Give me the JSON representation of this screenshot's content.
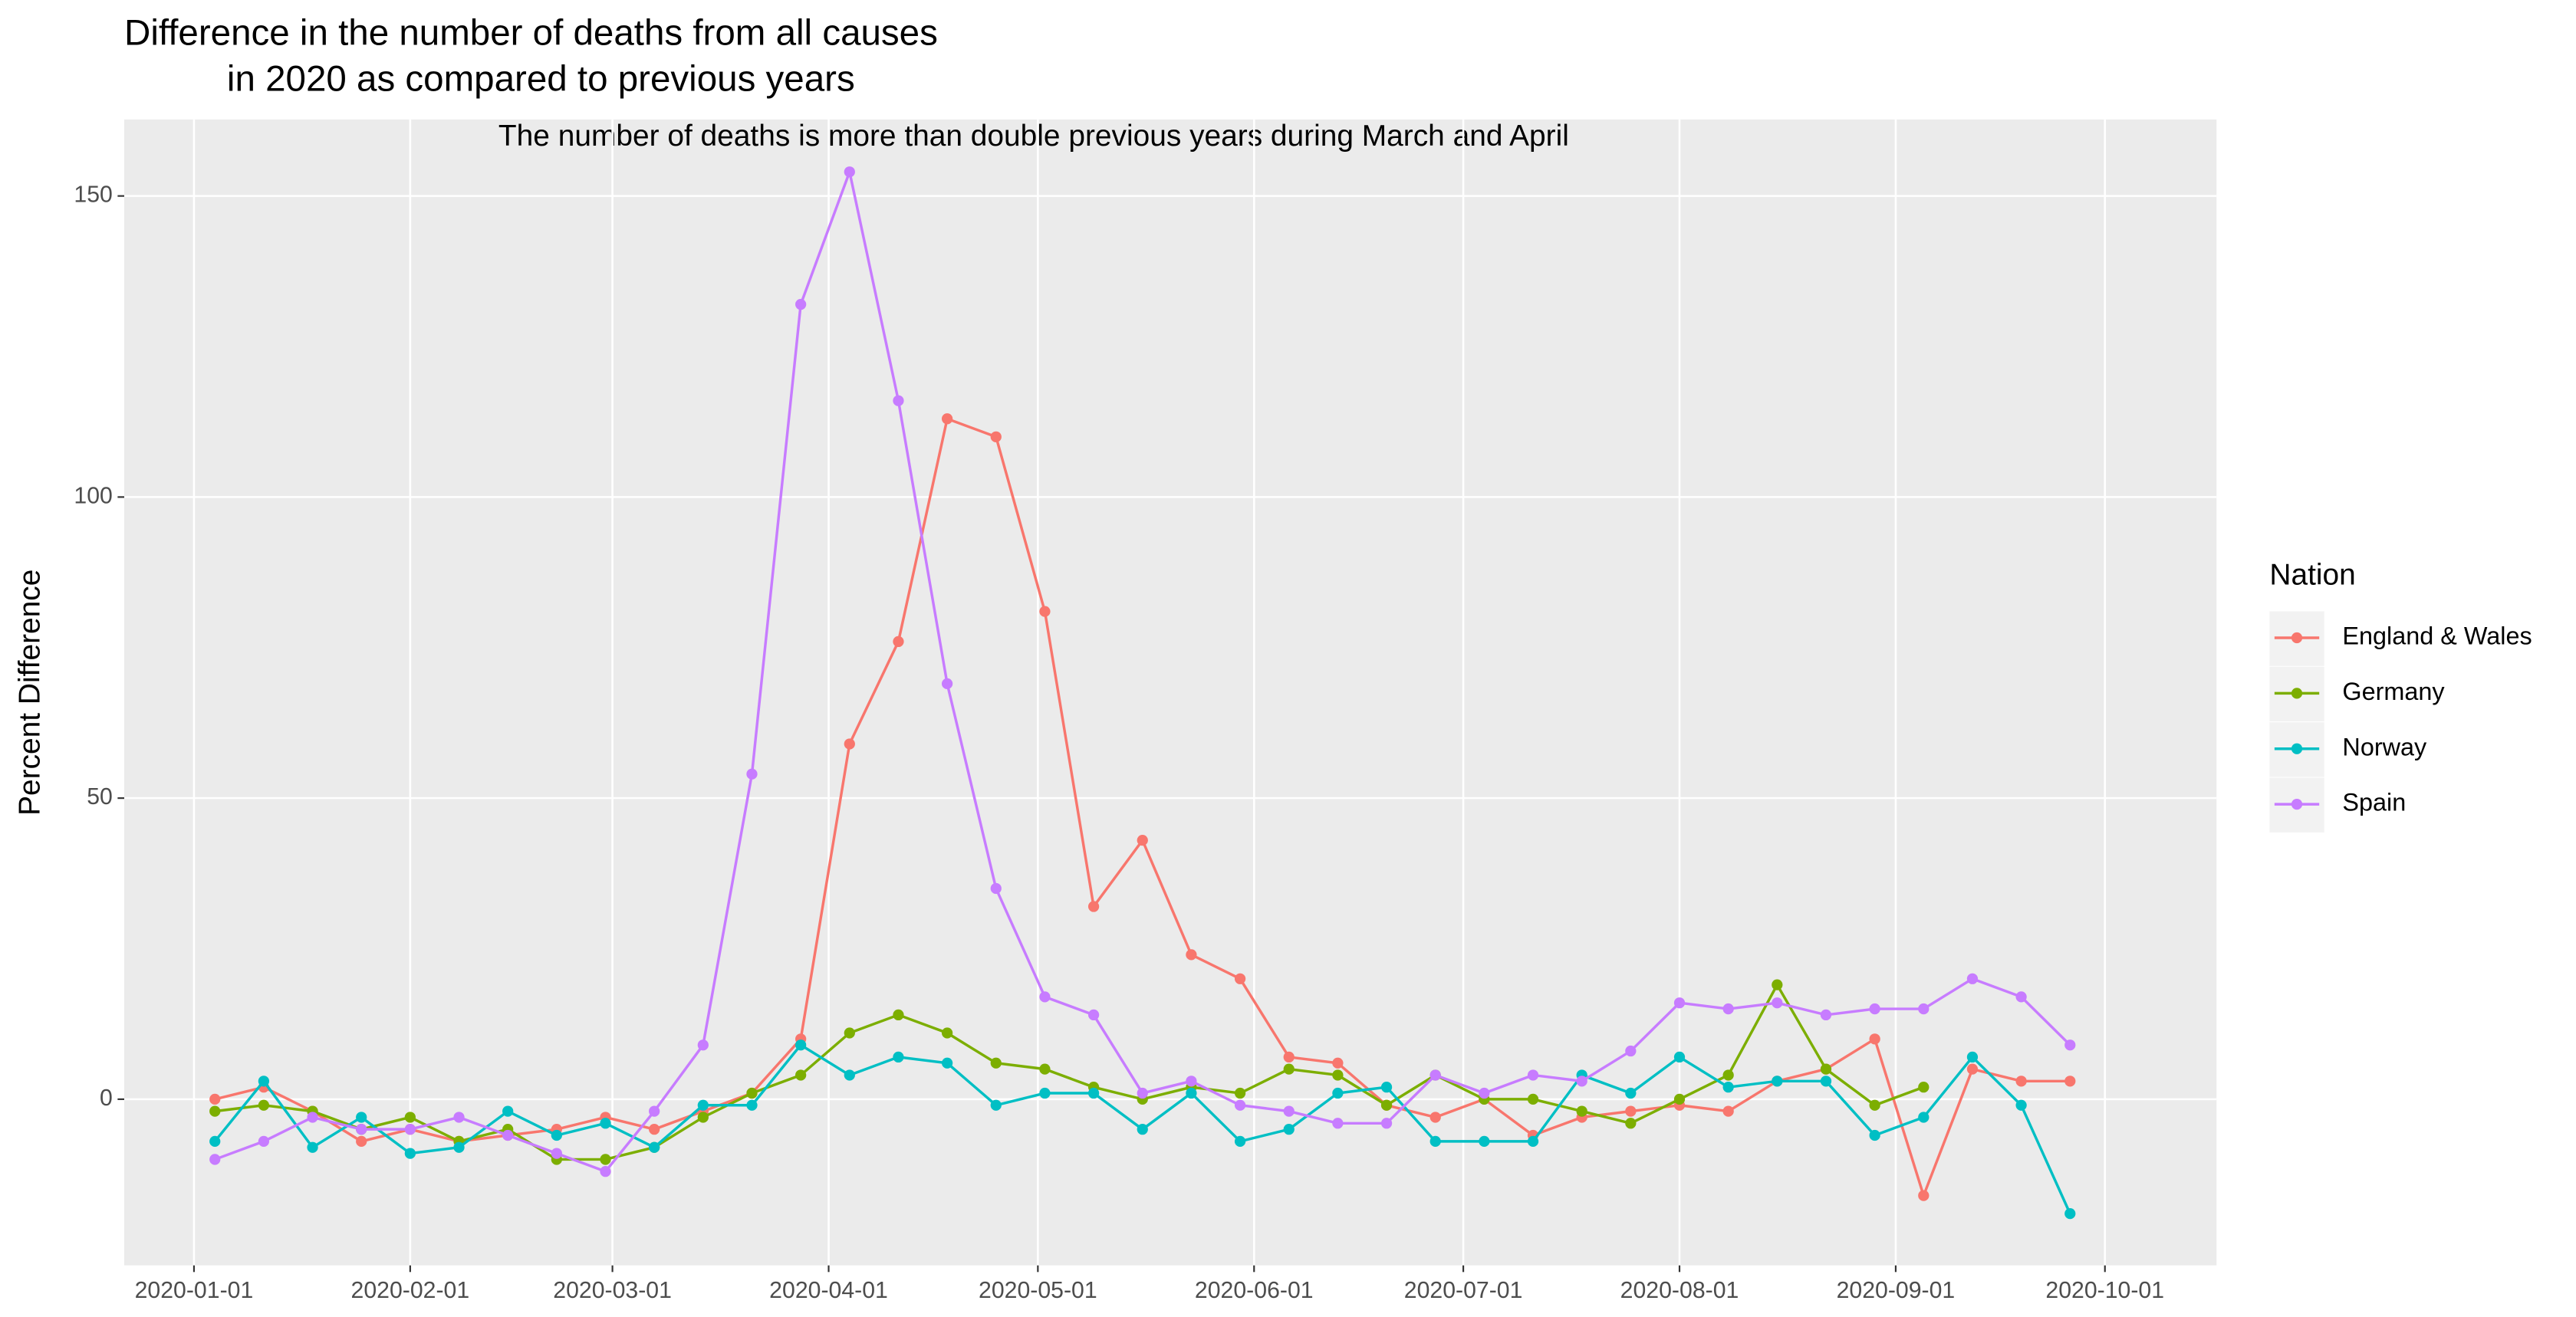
{
  "chart_data": {
    "type": "line",
    "title": [
      "Difference in the number of deaths from all causes",
      "in 2020 as compared to previous years"
    ],
    "annotation": "The number of deaths is more than double previous years during March and April",
    "y_label": "Percent Difference",
    "legend_title": "Nation",
    "legend_position": "right",
    "grid": true,
    "x": [
      "2020-01-04",
      "2020-01-11",
      "2020-01-18",
      "2020-01-25",
      "2020-02-01",
      "2020-02-08",
      "2020-02-15",
      "2020-02-22",
      "2020-02-29",
      "2020-03-07",
      "2020-03-14",
      "2020-03-21",
      "2020-03-28",
      "2020-04-04",
      "2020-04-11",
      "2020-04-18",
      "2020-04-25",
      "2020-05-02",
      "2020-05-09",
      "2020-05-16",
      "2020-05-23",
      "2020-05-30",
      "2020-06-06",
      "2020-06-13",
      "2020-06-20",
      "2020-06-27",
      "2020-07-04",
      "2020-07-11",
      "2020-07-18",
      "2020-07-25",
      "2020-08-01",
      "2020-08-08",
      "2020-08-15",
      "2020-08-22",
      "2020-08-29",
      "2020-09-05",
      "2020-09-12",
      "2020-09-19",
      "2020-09-26"
    ],
    "xlim": [
      "2019-12-22",
      "2020-10-17"
    ],
    "xticks": [
      "2020-01-01",
      "2020-02-01",
      "2020-03-01",
      "2020-04-01",
      "2020-05-01",
      "2020-06-01",
      "2020-07-01",
      "2020-08-01",
      "2020-09-01",
      "2020-10-01"
    ],
    "ylim": [
      -27.6,
      162.7
    ],
    "yticks": [
      0,
      50,
      100,
      150
    ],
    "series": [
      {
        "name": "England & Wales",
        "color": "#F8766D",
        "values": [
          0,
          2,
          -2,
          -7,
          -5,
          -7,
          -6,
          -5,
          -3,
          -5,
          -2,
          1,
          10,
          59,
          76,
          113,
          110,
          81,
          32,
          43,
          24,
          20,
          7,
          6,
          -1,
          -3,
          0,
          -6,
          -3,
          -2,
          -1,
          -2,
          3,
          5,
          10,
          -16,
          5,
          3,
          3
        ]
      },
      {
        "name": "Germany",
        "color": "#7CAE00",
        "values": [
          -2,
          -1,
          -2,
          -5,
          -3,
          -7,
          -5,
          -10,
          -10,
          -8,
          -3,
          1,
          4,
          11,
          14,
          11,
          6,
          5,
          2,
          0,
          2,
          1,
          5,
          4,
          -1,
          4,
          0,
          0,
          -2,
          -4,
          0,
          4,
          19,
          5,
          -1,
          2,
          null,
          null,
          null
        ]
      },
      {
        "name": "Norway",
        "color": "#00BFC4",
        "values": [
          -7,
          3,
          -8,
          -3,
          -9,
          -8,
          -2,
          -6,
          -4,
          -8,
          -1,
          -1,
          9,
          4,
          7,
          6,
          -1,
          1,
          1,
          -5,
          1,
          -7,
          -5,
          1,
          2,
          -7,
          -7,
          -7,
          4,
          1,
          7,
          2,
          3,
          3,
          -6,
          -3,
          7,
          -1,
          -19
        ]
      },
      {
        "name": "Spain",
        "color": "#C77CFF",
        "values": [
          -10,
          -7,
          -3,
          -5,
          -5,
          -3,
          -6,
          -9,
          -12,
          -2,
          9,
          54,
          132,
          154,
          116,
          69,
          35,
          17,
          14,
          1,
          3,
          -1,
          -2,
          -4,
          -4,
          4,
          1,
          4,
          3,
          8,
          16,
          15,
          16,
          14,
          15,
          15,
          20,
          17,
          9
        ]
      }
    ]
  }
}
